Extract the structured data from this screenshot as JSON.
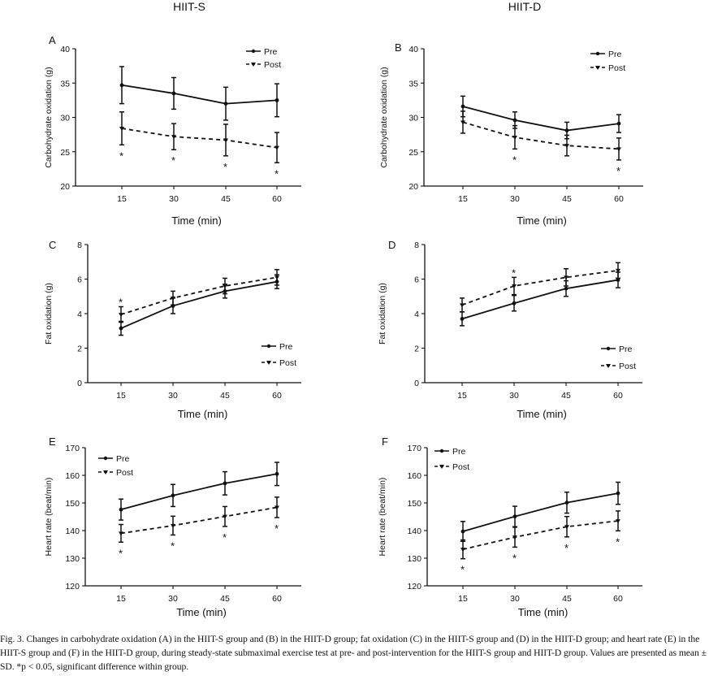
{
  "column_titles": [
    "HIIT-S",
    "HIIT-D"
  ],
  "x_ticks": [
    "15",
    "30",
    "45",
    "60"
  ],
  "x_label": "Time (min)",
  "legend": {
    "pre": "Pre",
    "post": "Post"
  },
  "significance_marker": "*",
  "caption": "Fig. 3.  Changes in carbohydrate oxidation (A) in the HIIT-S group and (B) in the HIIT-D group; fat oxidation (C) in the HIIT-S group and (D) in the HIIT-D group; and heart rate (E) in the HIIT-S group and (F) in the HIIT-D group, during steady-state submaximal exercise test at pre- and post-intervention for the HIIT-S group and HIIT-D group. Values are presented as mean ± SD. *p < 0.05, significant difference within group.",
  "chart_data": [
    {
      "panel": "A",
      "type": "line",
      "ylabel": "Carbohydrate oxidation (g)",
      "xlabel": "Time (min)",
      "ylim": [
        20,
        40
      ],
      "yticks": [
        20,
        25,
        30,
        35,
        40
      ],
      "categories": [
        15,
        30,
        45,
        60
      ],
      "legend_position": "top-right",
      "series": [
        {
          "name": "Pre",
          "values": [
            34.7,
            33.5,
            32.0,
            32.5
          ],
          "sd": [
            2.7,
            2.3,
            2.4,
            2.4
          ]
        },
        {
          "name": "Post",
          "values": [
            28.4,
            27.2,
            26.7,
            25.6
          ],
          "sd": [
            2.4,
            1.9,
            2.3,
            2.2
          ]
        }
      ],
      "significant": [
        true,
        true,
        true,
        true
      ]
    },
    {
      "panel": "B",
      "type": "line",
      "ylabel": "Carbohydrate oxidation (g)",
      "xlabel": "Time (min)",
      "ylim": [
        20,
        40
      ],
      "yticks": [
        20,
        25,
        30,
        35,
        40
      ],
      "categories": [
        15,
        30,
        45,
        60
      ],
      "legend_position": "top-right",
      "series": [
        {
          "name": "Pre",
          "values": [
            31.6,
            29.6,
            28.1,
            29.1
          ],
          "sd": [
            1.5,
            1.2,
            1.2,
            1.3
          ]
        },
        {
          "name": "Post",
          "values": [
            29.3,
            27.1,
            25.9,
            25.4
          ],
          "sd": [
            1.6,
            1.7,
            1.5,
            1.6
          ]
        }
      ],
      "significant": [
        false,
        true,
        false,
        true
      ]
    },
    {
      "panel": "C",
      "type": "line",
      "ylabel": "Fat oxidation (g)",
      "xlabel": "Time (min)",
      "ylim": [
        0,
        8
      ],
      "yticks": [
        0,
        2,
        4,
        6,
        8
      ],
      "categories": [
        15,
        30,
        45,
        60
      ],
      "legend_position": "bottom-right",
      "series": [
        {
          "name": "Pre",
          "values": [
            3.15,
            4.45,
            5.3,
            5.85
          ],
          "sd": [
            0.4,
            0.45,
            0.4,
            0.4
          ]
        },
        {
          "name": "Post",
          "values": [
            3.95,
            4.9,
            5.6,
            6.1
          ],
          "sd": [
            0.45,
            0.4,
            0.45,
            0.45
          ]
        }
      ],
      "significant": [
        true,
        false,
        false,
        false
      ]
    },
    {
      "panel": "D",
      "type": "line",
      "ylabel": "Fat oxidation (g)",
      "xlabel": "Time (min)",
      "ylim": [
        0,
        8
      ],
      "yticks": [
        0,
        2,
        4,
        6,
        8
      ],
      "categories": [
        15,
        30,
        45,
        60
      ],
      "legend_position": "bottom-right",
      "series": [
        {
          "name": "Pre",
          "values": [
            3.7,
            4.6,
            5.45,
            5.95
          ],
          "sd": [
            0.4,
            0.45,
            0.45,
            0.45
          ]
        },
        {
          "name": "Post",
          "values": [
            4.5,
            5.6,
            6.1,
            6.5
          ],
          "sd": [
            0.4,
            0.5,
            0.5,
            0.45
          ]
        }
      ],
      "significant": [
        false,
        true,
        false,
        false
      ]
    },
    {
      "panel": "E",
      "type": "line",
      "ylabel": "Heart rate (beat/min)",
      "xlabel": "Time (min)",
      "ylim": [
        120,
        170
      ],
      "yticks": [
        120,
        130,
        140,
        150,
        160,
        170
      ],
      "categories": [
        15,
        30,
        45,
        60
      ],
      "legend_position": "top-left",
      "series": [
        {
          "name": "Pre",
          "values": [
            147.6,
            152.7,
            157.1,
            160.5
          ],
          "sd": [
            3.8,
            4.0,
            4.2,
            4.2
          ]
        },
        {
          "name": "Post",
          "values": [
            139.0,
            141.8,
            145.1,
            148.4
          ],
          "sd": [
            3.2,
            3.4,
            3.6,
            3.7
          ]
        }
      ],
      "significant": [
        true,
        true,
        true,
        true
      ]
    },
    {
      "panel": "F",
      "type": "line",
      "ylabel": "Heart rate (beat/min)",
      "xlabel": "Time (min)",
      "ylim": [
        120,
        170
      ],
      "yticks": [
        120,
        130,
        140,
        150,
        160,
        170
      ],
      "categories": [
        15,
        30,
        45,
        60
      ],
      "legend_position": "top-left",
      "series": [
        {
          "name": "Pre",
          "values": [
            139.7,
            145.1,
            150.1,
            153.5
          ],
          "sd": [
            3.6,
            3.7,
            3.8,
            4.0
          ]
        },
        {
          "name": "Post",
          "values": [
            133.2,
            137.6,
            141.4,
            143.5
          ],
          "sd": [
            3.4,
            3.6,
            3.7,
            3.6
          ]
        }
      ],
      "significant": [
        true,
        true,
        true,
        true
      ]
    }
  ]
}
